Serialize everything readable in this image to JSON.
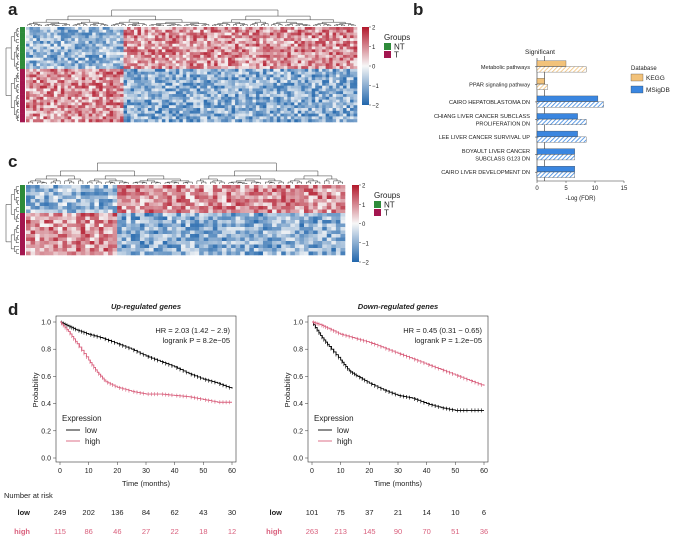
{
  "panel_labels": {
    "a": "a",
    "b": "b",
    "c": "c",
    "d": "d"
  },
  "colors": {
    "nt": "#2e8b3a",
    "t": "#a3164f",
    "high_red": "#b2182b",
    "low_blue": "#2166ac",
    "kegg": "#f2c27a",
    "msigdb": "#3a86e0",
    "curve_low": "#000000",
    "curve_high": "#d9607d"
  },
  "heatmap_a": {
    "legend_title": "Groups",
    "legend_nt": "NT",
    "legend_t": "T",
    "scale_ticks": [
      "2",
      "1",
      "0",
      "−1",
      "−2"
    ]
  },
  "heatmap_c": {
    "legend_title": "Groups",
    "legend_nt": "NT",
    "legend_t": "T",
    "scale_ticks": [
      "2",
      "1",
      "0",
      "−1",
      "−2"
    ]
  },
  "chart_data": [
    {
      "type": "bar",
      "panel": "b",
      "title": "Significant",
      "xlabel": "-Log (FDR)",
      "ylabel": "",
      "xlim": [
        0,
        15
      ],
      "xticks": [
        "0",
        "5",
        "10",
        "15"
      ],
      "legend_title": "Database",
      "legend": [
        "KEGG",
        "MSigDB"
      ],
      "categories": [
        {
          "label": "Metabolic pathways",
          "db": "KEGG",
          "values": [
            5.0,
            8.5
          ]
        },
        {
          "label": "PPAR signaling pathway",
          "db": "KEGG",
          "values": [
            1.3,
            1.8
          ]
        },
        {
          "label": "CAIRO HEPATOBLASTOMA DN",
          "db": "MSigDB",
          "values": [
            10.5,
            11.5
          ]
        },
        {
          "label": "CHIANG LIVER CANCER SUBCLASS PROLIFERATION DN",
          "label_lines": [
            "CHIANG LIVER CANCER SUBCLASS",
            "PROLIFERATION DN"
          ],
          "db": "MSigDB",
          "values": [
            7.0,
            8.5
          ]
        },
        {
          "label": "LEE LIVER CANCER SURVIVAL UP",
          "db": "MSigDB",
          "values": [
            7.0,
            8.5
          ]
        },
        {
          "label": "BOYAULT LIVER CANCER SUBCLASS G123 DN",
          "label_lines": [
            "BOYAULT LIVER CANCER",
            "SUBCLASS G123 DN"
          ],
          "db": "MSigDB",
          "values": [
            6.5,
            6.5
          ]
        },
        {
          "label": "CAIRO LIVER DEVELOPMENT DN",
          "db": "MSigDB",
          "values": [
            6.5,
            6.5
          ]
        }
      ]
    },
    {
      "type": "line",
      "panel": "d-left",
      "title": "Up-regulated genes",
      "xlabel": "Time (months)",
      "ylabel": "Probability",
      "xlim": [
        0,
        60
      ],
      "ylim": [
        0,
        1
      ],
      "xticks": [
        "0",
        "10",
        "20",
        "30",
        "40",
        "50",
        "60"
      ],
      "yticks": [
        "0.0",
        "0.2",
        "0.4",
        "0.6",
        "0.8",
        "1.0"
      ],
      "annotation_hr": "HR = 2.03 (1.42 − 2.9)",
      "annotation_p": "logrank P = 8.2e−05",
      "legend_title": "Expression",
      "series": [
        {
          "name": "low",
          "x": [
            0,
            3,
            6,
            10,
            15,
            20,
            25,
            30,
            35,
            40,
            45,
            50,
            55,
            60
          ],
          "y": [
            1.0,
            0.97,
            0.94,
            0.91,
            0.88,
            0.84,
            0.8,
            0.75,
            0.71,
            0.67,
            0.62,
            0.58,
            0.55,
            0.51
          ]
        },
        {
          "name": "high",
          "x": [
            0,
            3,
            6,
            10,
            13,
            16,
            20,
            25,
            30,
            35,
            40,
            45,
            50,
            55,
            60
          ],
          "y": [
            1.0,
            0.93,
            0.84,
            0.72,
            0.63,
            0.56,
            0.52,
            0.49,
            0.47,
            0.47,
            0.46,
            0.45,
            0.43,
            0.41,
            0.41
          ]
        }
      ],
      "risk_table": {
        "header": "Number at risk",
        "rows": [
          {
            "name": "low",
            "values": [
              "249",
              "202",
              "136",
              "84",
              "62",
              "43",
              "30"
            ]
          },
          {
            "name": "high",
            "values": [
              "115",
              "86",
              "46",
              "27",
              "22",
              "18",
              "12"
            ]
          }
        ]
      }
    },
    {
      "type": "line",
      "panel": "d-right",
      "title": "Down-regulated genes",
      "xlabel": "Time (months)",
      "ylabel": "Probability",
      "xlim": [
        0,
        60
      ],
      "ylim": [
        0,
        1
      ],
      "xticks": [
        "0",
        "10",
        "20",
        "30",
        "40",
        "50",
        "60"
      ],
      "yticks": [
        "0.0",
        "0.2",
        "0.4",
        "0.6",
        "0.8",
        "1.0"
      ],
      "annotation_hr": "HR = 0.45 (0.31 − 0.65)",
      "annotation_p": "logrank P = 1.2e−05",
      "legend_title": "Expression",
      "series": [
        {
          "name": "low",
          "x": [
            0,
            3,
            6,
            10,
            13,
            16,
            20,
            25,
            30,
            35,
            40,
            45,
            50,
            55,
            60
          ],
          "y": [
            1.0,
            0.9,
            0.82,
            0.72,
            0.64,
            0.6,
            0.55,
            0.5,
            0.46,
            0.44,
            0.4,
            0.37,
            0.35,
            0.35,
            0.35
          ]
        },
        {
          "name": "high",
          "x": [
            0,
            3,
            6,
            10,
            15,
            20,
            25,
            30,
            35,
            40,
            45,
            50,
            55,
            60
          ],
          "y": [
            1.0,
            0.98,
            0.95,
            0.91,
            0.88,
            0.85,
            0.81,
            0.77,
            0.73,
            0.69,
            0.65,
            0.61,
            0.57,
            0.53
          ]
        }
      ],
      "risk_table": {
        "header": "",
        "rows": [
          {
            "name": "low",
            "values": [
              "101",
              "75",
              "37",
              "21",
              "14",
              "10",
              "6"
            ]
          },
          {
            "name": "high",
            "values": [
              "263",
              "213",
              "145",
              "90",
              "70",
              "51",
              "36"
            ]
          }
        ]
      }
    }
  ]
}
